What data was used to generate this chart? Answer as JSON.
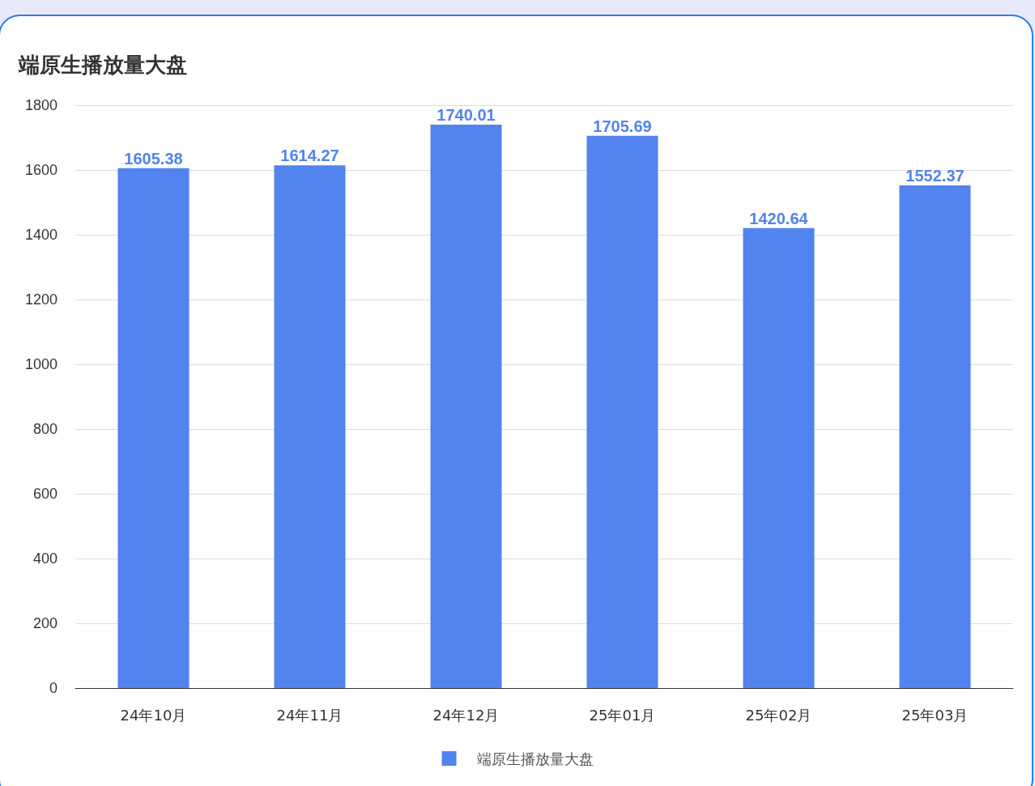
{
  "chart_data": {
    "type": "bar",
    "title": "端原生播放量大盘",
    "categories": [
      "24年10月",
      "24年11月",
      "24年12月",
      "25年01月",
      "25年02月",
      "25年03月"
    ],
    "series": [
      {
        "name": "端原生播放量大盘",
        "color": "#5283ee",
        "values": [
          1605.38,
          1614.27,
          1740.01,
          1705.69,
          1420.64,
          1552.37
        ]
      }
    ],
    "ylim": [
      0,
      1800
    ],
    "yticks": [
      0,
      200,
      400,
      600,
      800,
      1000,
      1200,
      1400,
      1600,
      1800
    ],
    "grid": "y",
    "legend": "bottom",
    "data_labels": true
  }
}
